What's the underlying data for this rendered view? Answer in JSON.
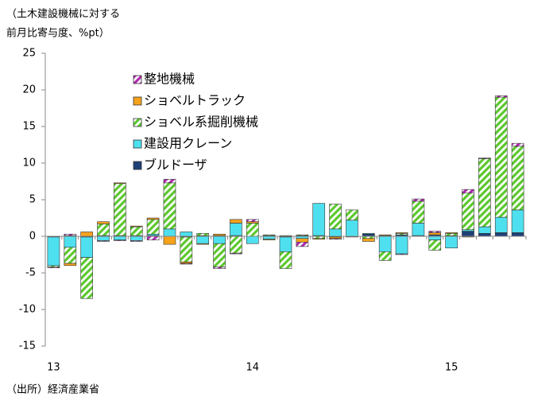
{
  "chart_data": {
    "type": "bar",
    "stacked": true,
    "ylabel": [
      "（土木建設機械に対する",
      "前月比寄与度、%pt）"
    ],
    "source": "（出所）経済産業省",
    "categories": [
      "13",
      null,
      null,
      null,
      null,
      null,
      null,
      null,
      null,
      null,
      null,
      null,
      "14",
      null,
      null,
      null,
      null,
      null,
      null,
      null,
      null,
      null,
      null,
      null,
      "15",
      null,
      null,
      null,
      null
    ],
    "series": [
      {
        "name": "ブルドーザ",
        "color": "#1f3f77",
        "pattern": "solid",
        "values": [
          -0.1,
          0.1,
          -0.1,
          0.1,
          0.1,
          0.1,
          0.1,
          0,
          -0.1,
          0.1,
          0.1,
          0.1,
          0,
          0.1,
          -0.1,
          0.1,
          0.1,
          -0.1,
          0,
          0.3,
          0.1,
          0.2,
          0.1,
          0.2,
          0.1,
          0.7,
          0.4,
          0.5,
          0.5
        ]
      },
      {
        "name": "建設用クレーン",
        "color": "#4fe0f0",
        "pattern": "solid",
        "values": [
          -3.9,
          -1.5,
          -2.8,
          -0.6,
          -0.5,
          -0.6,
          0.2,
          1.0,
          0.6,
          -1.0,
          -1.0,
          1.7,
          -1.0,
          -0.4,
          -2.0,
          -0.3,
          4.4,
          1.0,
          2.2,
          0.1,
          -2.1,
          -2.4,
          1.7,
          -0.5,
          -1.6,
          0.2,
          0.9,
          2.1,
          3.1
        ]
      },
      {
        "name": "ショベル系掘削機械",
        "color": "#5cc82e",
        "pattern": "hatch",
        "values": [
          -0.2,
          -2.2,
          -5.6,
          1.6,
          7.1,
          1.2,
          2.0,
          6.3,
          -3.4,
          0.3,
          -3.2,
          -2.3,
          1.8,
          0.1,
          -2.3,
          0.1,
          -0.3,
          3.4,
          1.4,
          -0.3,
          -1.2,
          0.2,
          3.0,
          -1.4,
          0.3,
          5.0,
          9.3,
          16.4,
          8.7
        ]
      },
      {
        "name": "ショベルトラック",
        "color": "#f7a21b",
        "pattern": "solid",
        "values": [
          0,
          -0.3,
          0.6,
          0.3,
          0.1,
          0.1,
          0.2,
          -1.1,
          -0.2,
          -0.1,
          0.2,
          0.5,
          0.2,
          -0.1,
          0.1,
          -0.5,
          -0.1,
          -0.2,
          -0.1,
          -0.4,
          0.1,
          0.1,
          0,
          0.3,
          0.1,
          -0.1,
          0,
          0,
          0
        ]
      },
      {
        "name": "整地機械",
        "color": "#b02ab0",
        "pattern": "hatch",
        "values": [
          -0.1,
          0.2,
          0,
          -0.1,
          -0.1,
          -0.1,
          -0.5,
          0.5,
          -0.1,
          0,
          -0.2,
          -0.1,
          0.3,
          0,
          0,
          -0.6,
          0,
          -0.1,
          0,
          0,
          0,
          -0.1,
          0.3,
          0.2,
          0,
          0.5,
          0.1,
          0.2,
          0.4
        ]
      }
    ],
    "ylim": [
      -15,
      25
    ],
    "yticks": [
      -15,
      -10,
      -5,
      0,
      5,
      10,
      15,
      20,
      25
    ],
    "legend": "upper left"
  }
}
